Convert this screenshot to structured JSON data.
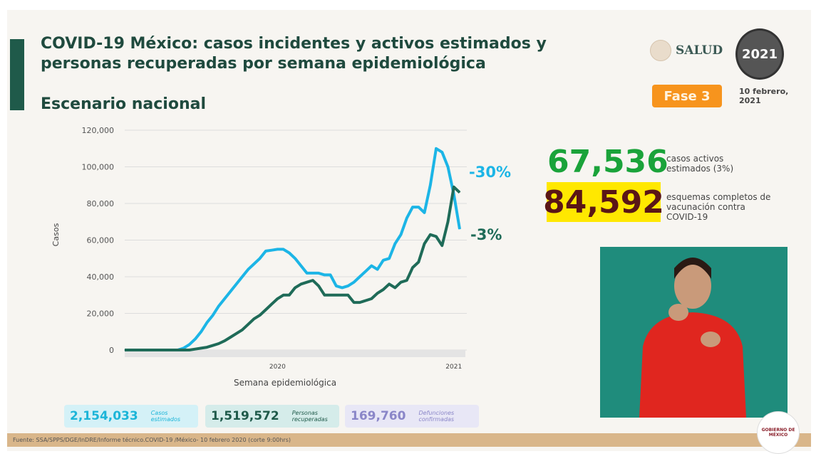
{
  "header": {
    "title": "COVID-19 México: casos incidentes y activos estimados y personas recuperadas por semana epidemiológica",
    "subtitle": "Escenario nacional",
    "salud_logo": "SALUD",
    "mexico_logo": "2021",
    "fase": "Fase 3",
    "date": "10 febrero, 2021"
  },
  "kpis": {
    "active": {
      "value": "67,536",
      "label": "casos activos estimados (3%)",
      "color": "#1aa33a"
    },
    "vaccine": {
      "value": "84,592",
      "label": "esquemas completos de vacunación contra COVID-19",
      "color": "#5a1616",
      "bg": "#ffe800"
    }
  },
  "stats": [
    {
      "value": "2,154,033",
      "label": "Casos estimados",
      "color": "#1cb5d8",
      "bg": "#d4f1f7"
    },
    {
      "value": "1,519,572",
      "label": "Personas recuperadas",
      "color": "#1f5a4a",
      "bg": "#d5ecea"
    },
    {
      "value": "169,760",
      "label": "Defunciones confirmadas",
      "color": "#8a86c8",
      "bg": "#e8e7f6"
    }
  ],
  "footer": "Fuente: SSA/SPPS/DGE/InDRE/Informe técnico.COVID-19 /México- 10 febrero 2020 (corte 9:00hrs)",
  "gob_logo": "GOBIERNO DE MÉXICO",
  "chart_data": {
    "type": "line",
    "xlabel": "Semana epidemiológica",
    "ylabel": "Casos",
    "ylim": [
      0,
      120000
    ],
    "yticks": [
      "0",
      "20,000",
      "40,000",
      "60,000",
      "80,000",
      "100,000",
      "120,000"
    ],
    "xtick_labels": [
      {
        "week": 26,
        "label": "2020"
      },
      {
        "week": 56,
        "label": "2021"
      }
    ],
    "grid": true,
    "series": [
      {
        "color": "#1cb5e6",
        "change_label": "-30%",
        "values": [
          0,
          0,
          0,
          0,
          0,
          0,
          0,
          0,
          0,
          0,
          1000,
          3000,
          6000,
          10000,
          15000,
          19000,
          24000,
          28000,
          32000,
          36000,
          40000,
          44000,
          47000,
          50000,
          54000,
          54500,
          55000,
          55000,
          53000,
          50000,
          46000,
          42000,
          42000,
          42000,
          41000,
          41000,
          35000,
          34000,
          35000,
          37000,
          40000,
          43000,
          46000,
          44000,
          49000,
          50000,
          58000,
          63000,
          72000,
          78000,
          78000,
          75000,
          90000,
          110000,
          108000,
          100000,
          85000,
          66000
        ]
      },
      {
        "color": "#1f6b58",
        "change_label": "-3%",
        "values": [
          0,
          0,
          0,
          0,
          0,
          0,
          0,
          0,
          0,
          0,
          0,
          0,
          500,
          1000,
          1500,
          2500,
          3500,
          5000,
          7000,
          9000,
          11000,
          14000,
          17000,
          19000,
          22000,
          25000,
          28000,
          30000,
          30000,
          34000,
          36000,
          37000,
          38000,
          35000,
          30000,
          30000,
          30000,
          30000,
          30000,
          26000,
          26000,
          27000,
          28000,
          31000,
          33000,
          36000,
          34000,
          37000,
          38000,
          45000,
          48000,
          58000,
          63000,
          62000,
          57000,
          70000,
          89000,
          86000
        ]
      }
    ]
  }
}
